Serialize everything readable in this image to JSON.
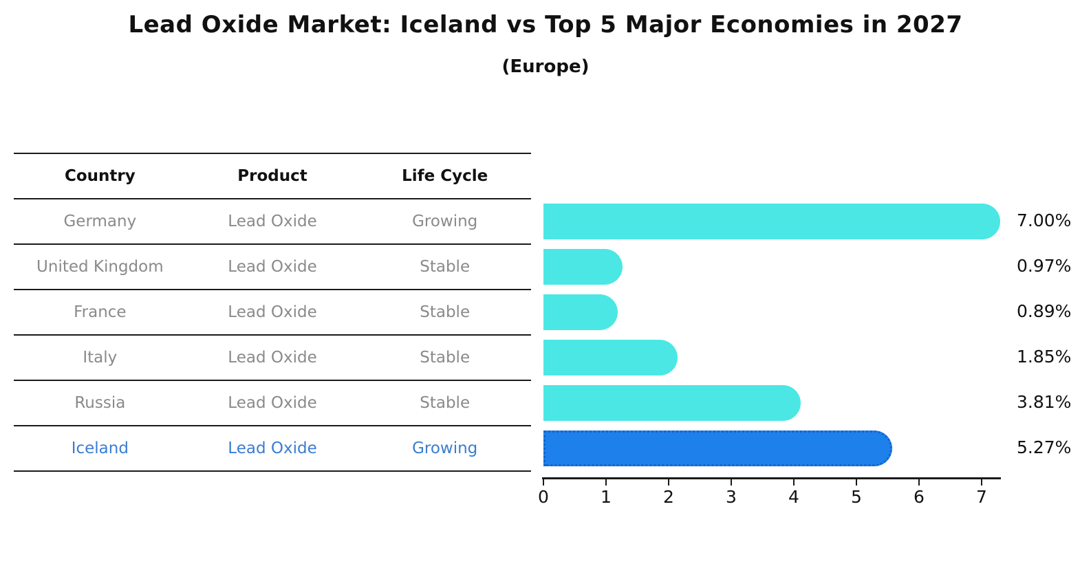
{
  "header": {
    "title": "Lead Oxide Market: Iceland vs Top 5 Major Economies in 2027",
    "subtitle": "(Europe)"
  },
  "table": {
    "columns": [
      "Country",
      "Product",
      "Life Cycle"
    ],
    "rows": [
      {
        "country": "Germany",
        "product": "Lead Oxide",
        "life_cycle": "Growing"
      },
      {
        "country": "United Kingdom",
        "product": "Lead Oxide",
        "life_cycle": "Stable"
      },
      {
        "country": "France",
        "product": "Lead Oxide",
        "life_cycle": "Stable"
      },
      {
        "country": "Italy",
        "product": "Lead Oxide",
        "life_cycle": "Stable"
      },
      {
        "country": "Russia",
        "product": "Lead Oxide",
        "life_cycle": "Stable"
      },
      {
        "country": "Iceland",
        "product": "Lead Oxide",
        "life_cycle": "Growing"
      }
    ],
    "highlight_row": "Iceland"
  },
  "chart_data": {
    "type": "bar",
    "orientation": "horizontal",
    "title": "Lead Oxide Market: Iceland vs Top 5 Major Economies in 2027",
    "subtitle": "(Europe)",
    "categories": [
      "Germany",
      "United Kingdom",
      "France",
      "Italy",
      "Russia",
      "Iceland"
    ],
    "values": [
      7.0,
      0.97,
      0.89,
      1.85,
      3.81,
      5.27
    ],
    "value_labels": [
      "7.00%",
      "0.97%",
      "0.89%",
      "1.85%",
      "3.81%",
      "5.27%"
    ],
    "xticks": [
      "0",
      "1",
      "2",
      "3",
      "4",
      "5",
      "6",
      "7"
    ],
    "xlim": [
      0,
      7.35
    ],
    "xlabel": "",
    "ylabel": "",
    "grid": false,
    "legend": false,
    "bar_color": "#4BE7E4",
    "highlight_color": "#1E80EA",
    "highlight_border_color": "#1463cf",
    "highlight_index": 5
  },
  "colors": {
    "text_primary": "#111111",
    "text_muted": "#8a8a8a",
    "highlight_text": "#3a7dd2",
    "axis": "#1a1a1a"
  }
}
